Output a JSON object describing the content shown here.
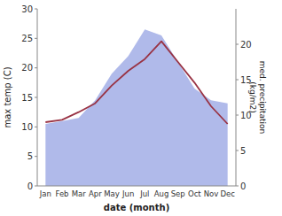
{
  "chart_data": {
    "type": "line",
    "categories": [
      "Jan",
      "Feb",
      "Mar",
      "Apr",
      "May",
      "Jun",
      "Jul",
      "Aug",
      "Sep",
      "Oct",
      "Nov",
      "Dec"
    ],
    "series": [
      {
        "type": "area",
        "color": "#b0baea",
        "values": [
          10.5,
          11.0,
          11.5,
          14.5,
          19.0,
          22.0,
          26.5,
          25.5,
          21.0,
          16.5,
          14.5,
          14.0
        ]
      },
      {
        "type": "line",
        "color": "#993344",
        "values": [
          10.8,
          11.2,
          12.5,
          14.0,
          17.0,
          19.5,
          21.5,
          24.5,
          21.0,
          17.5,
          13.5,
          10.5
        ]
      }
    ],
    "xlabel": "date (month)",
    "ylabel": "max temp (C)",
    "y2label": "med. precipitation\n(kg/m2)",
    "ylim": [
      0,
      30
    ],
    "yticks": [
      0,
      5,
      10,
      15,
      20,
      25,
      30
    ],
    "y2lim": [
      0,
      25
    ],
    "y2ticks": [
      0,
      5,
      10,
      15,
      20
    ],
    "grid": false
  }
}
